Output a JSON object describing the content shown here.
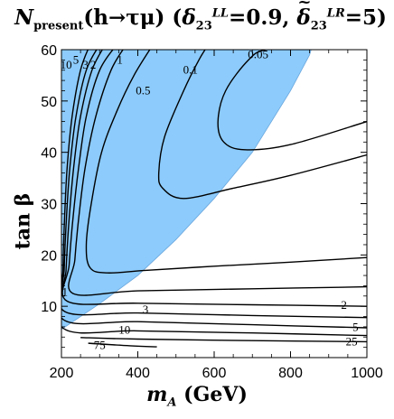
{
  "title": {
    "quantity": "N",
    "quantity_sub": "present",
    "process": "(h→τμ) (",
    "p1_symbol": "δ",
    "p1_sub": "23",
    "p1_sup": "LL",
    "p1_value": "=0.9, ",
    "p2_symbol": "δ",
    "p2_sub": "23",
    "p2_sup": "LR",
    "p2_value": "=5)"
  },
  "ylabel": {
    "symbol": "tan β"
  },
  "xlabel": {
    "symbol": "m",
    "sub": "A",
    "unit": " (GeV)"
  },
  "colors": {
    "region": "#8ccbfb",
    "region_edge": "#6aa6dd",
    "contour": "#000000"
  },
  "chart_data": {
    "type": "contour",
    "xlim": [
      200,
      1000
    ],
    "ylim": [
      0,
      60
    ],
    "x_ticks": [
      200,
      400,
      600,
      800,
      1000
    ],
    "y_ticks": [
      10,
      20,
      30,
      40,
      50,
      60
    ],
    "shaded_region_boundary": [
      [
        200,
        5.5
      ],
      [
        250,
        8
      ],
      [
        300,
        10.5
      ],
      [
        400,
        16
      ],
      [
        500,
        23
      ],
      [
        600,
        31
      ],
      [
        700,
        40
      ],
      [
        750,
        46
      ],
      [
        800,
        52
      ],
      [
        850,
        59
      ],
      [
        858,
        61
      ]
    ],
    "contours": [
      {
        "label": "0.05",
        "points": [
          [
            850,
            61
          ],
          [
            735,
            60
          ],
          [
            690,
            58
          ],
          [
            630,
            52
          ],
          [
            610,
            46
          ],
          [
            625,
            42
          ],
          [
            680,
            40.5
          ],
          [
            800,
            41.5
          ],
          [
            1000,
            46
          ]
        ]
      },
      {
        "label": "0.1",
        "points": [
          [
            585,
            61
          ],
          [
            560,
            58
          ],
          [
            520,
            52
          ],
          [
            470,
            43
          ],
          [
            455,
            36
          ],
          [
            465,
            33
          ],
          [
            520,
            31
          ],
          [
            650,
            33
          ],
          [
            800,
            35.5
          ],
          [
            1000,
            39.5
          ]
        ]
      },
      {
        "label": "0.5",
        "points": [
          [
            440,
            61
          ],
          [
            390,
            55
          ],
          [
            345,
            48
          ],
          [
            305,
            40
          ],
          [
            278,
            30
          ],
          [
            265,
            22
          ],
          [
            275,
            17.5
          ],
          [
            320,
            16.5
          ],
          [
            420,
            17
          ],
          [
            600,
            17.8
          ],
          [
            800,
            18.6
          ],
          [
            1000,
            19.5
          ]
        ]
      },
      {
        "label": "1",
        "points": [
          [
            370,
            61
          ],
          [
            330,
            56
          ],
          [
            290,
            47
          ],
          [
            262,
            37
          ],
          [
            245,
            27
          ],
          [
            235,
            19
          ],
          [
            230,
            12.5
          ],
          [
            400,
            13
          ],
          [
            700,
            13.4
          ],
          [
            1000,
            13.8
          ]
        ]
      },
      {
        "label": "2",
        "points": [
          [
            345,
            61
          ],
          [
            300,
            56
          ],
          [
            265,
            47
          ],
          [
            245,
            37
          ],
          [
            230,
            27
          ],
          [
            220,
            18
          ],
          [
            215,
            11
          ],
          [
            400,
            10.6
          ],
          [
            700,
            10.3
          ],
          [
            1000,
            10
          ]
        ]
      },
      {
        "label": "3",
        "points": [
          [
            315,
            61
          ],
          [
            280,
            56
          ],
          [
            250,
            47
          ],
          [
            232,
            37
          ],
          [
            220,
            27
          ],
          [
            212,
            17
          ],
          [
            208,
            9
          ],
          [
            400,
            8.7
          ],
          [
            700,
            8.2
          ],
          [
            1000,
            7.8
          ]
        ]
      },
      {
        "label": "5",
        "points": [
          [
            300,
            61
          ],
          [
            265,
            56
          ],
          [
            238,
            47
          ],
          [
            222,
            37
          ],
          [
            213,
            27
          ],
          [
            207,
            17
          ],
          [
            205,
            7.4
          ],
          [
            400,
            7
          ],
          [
            700,
            6.4
          ],
          [
            1000,
            5.8
          ]
        ]
      },
      {
        "label": "10",
        "points": [
          [
            275,
            61
          ],
          [
            250,
            56
          ],
          [
            228,
            47
          ],
          [
            215,
            37
          ],
          [
            208,
            27
          ],
          [
            204,
            17
          ],
          [
            203,
            5.8
          ],
          [
            400,
            5.2
          ],
          [
            700,
            4.8
          ],
          [
            1000,
            4.3
          ]
        ]
      },
      {
        "label": "25",
        "points": [
          [
            250,
            3.9
          ],
          [
            400,
            3.6
          ],
          [
            700,
            3.3
          ],
          [
            1000,
            3.1
          ]
        ]
      },
      {
        "label": "75",
        "points": [
          [
            270,
            2.8
          ],
          [
            380,
            2.3
          ],
          [
            450,
            2.1
          ]
        ]
      }
    ],
    "contour_labels": [
      {
        "text": "10",
        "x": 212,
        "y": 57
      },
      {
        "text": "5",
        "x": 238,
        "y": 58
      },
      {
        "text": "3",
        "x": 263,
        "y": 57
      },
      {
        "text": "2",
        "x": 283,
        "y": 57
      },
      {
        "text": "1",
        "x": 353,
        "y": 58
      },
      {
        "text": "0.5",
        "x": 414,
        "y": 52
      },
      {
        "text": "0.1",
        "x": 538,
        "y": 56
      },
      {
        "text": "0.05",
        "x": 715,
        "y": 59
      },
      {
        "text": "1",
        "x": 209,
        "y": 12.8
      },
      {
        "text": "3",
        "x": 420,
        "y": 9.3
      },
      {
        "text": "10",
        "x": 365,
        "y": 5.4
      },
      {
        "text": "75",
        "x": 300,
        "y": 2.4
      },
      {
        "text": "2",
        "x": 940,
        "y": 10.2
      },
      {
        "text": "5",
        "x": 970,
        "y": 5.9
      },
      {
        "text": "25",
        "x": 960,
        "y": 3.1
      }
    ]
  }
}
